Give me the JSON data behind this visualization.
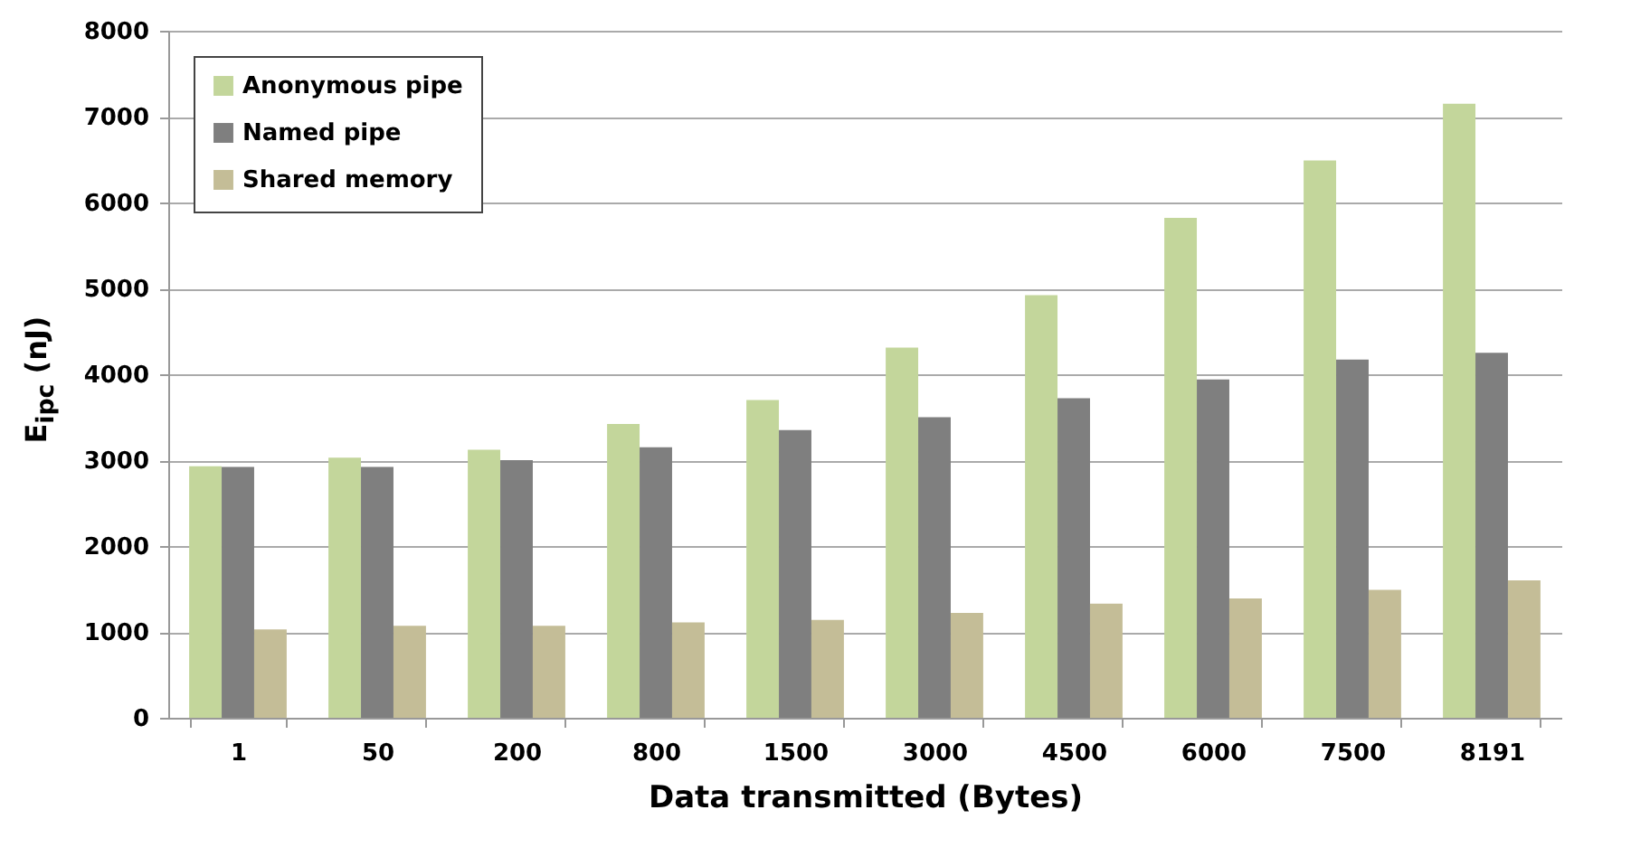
{
  "chart_data": {
    "type": "bar",
    "xlabel": "Data transmitted (Bytes)",
    "ylabel": "E$_{ipc}$ (nJ)",
    "categories": [
      "1",
      "50",
      "200",
      "800",
      "1500",
      "3000",
      "4500",
      "6000",
      "7500",
      "8191"
    ],
    "series": [
      {
        "name": "Anonymous pipe",
        "color": "#c3d69b",
        "values": [
          2930,
          3030,
          3120,
          3420,
          3700,
          4310,
          4920,
          5820,
          6490,
          7150
        ]
      },
      {
        "name": "Named pipe",
        "color": "#7f7f7f",
        "values": [
          2920,
          2920,
          3000,
          3150,
          3350,
          3500,
          3720,
          3940,
          4170,
          4250
        ]
      },
      {
        "name": "Shared memory",
        "color": "#c4bd97",
        "values": [
          1030,
          1070,
          1070,
          1110,
          1140,
          1220,
          1330,
          1390,
          1490,
          1600
        ]
      }
    ],
    "ylim": [
      0,
      8000
    ],
    "yticks": [
      0,
      1000,
      2000,
      3000,
      4000,
      5000,
      6000,
      7000,
      8000
    ],
    "grid": "y",
    "legend": "top left"
  }
}
